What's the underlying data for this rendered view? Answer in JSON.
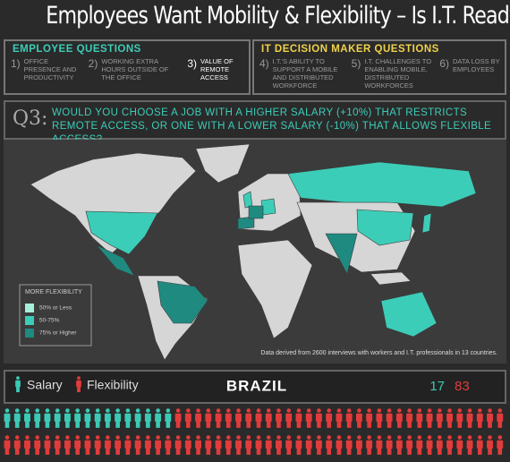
{
  "title": "Employees Want Mobility & Flexibility – Is I.T. Ready?",
  "employee_questions": {
    "heading": "EMPLOYEE QUESTIONS",
    "items": [
      {
        "number": "1)",
        "text": "OFFICE PRESENCE AND PRODUCTIVITY"
      },
      {
        "number": "2)",
        "text": "WORKING EXTRA HOURS OUTSIDE OF THE OFFICE"
      },
      {
        "number": "3)",
        "text": "VALUE OF REMOTE ACCESS"
      }
    ]
  },
  "it_questions": {
    "heading": "IT DECISION MAKER QUESTIONS",
    "items": [
      {
        "number": "4)",
        "text": "I.T.'S ABILITY TO SUPPORT A MOBILE AND DISTRIBUTED WORKFORCE"
      },
      {
        "number": "5)",
        "text": "I.T. CHALLENGES TO ENABLING MOBILE, DISTRIBUTED WORKFORCES"
      },
      {
        "number": "6)",
        "text": "DATA LOSS BY EMPLOYEES"
      }
    ]
  },
  "question": {
    "label": "Q3:",
    "text": "WOULD YOU CHOOSE A JOB WITH A HIGHER SALARY (+10%) THAT RESTRICTS REMOTE ACCESS, OR ONE WITH A LOWER SALARY (-10%) THAT ALLOWS FLEXIBLE ACCESS?"
  },
  "legend": {
    "title": "MORE FLEXIBILITY",
    "items": [
      {
        "label": "50% or Less",
        "color": "#a6eedc"
      },
      {
        "label": "50-75%",
        "color": "#3ccdb8"
      },
      {
        "label": "75% or Higher",
        "color": "#1f8a80"
      }
    ]
  },
  "footnote": "Data derived from 2600 interviews with workers and I.T. professionals in 13 countries.",
  "result": {
    "salary_label": "Salary",
    "flexibility_label": "Flexibility",
    "country": "BRAZIL",
    "salary": 17,
    "flexibility": 83,
    "salary_color": "#3cc9b5",
    "flexibility_color": "#e23b3b"
  }
}
